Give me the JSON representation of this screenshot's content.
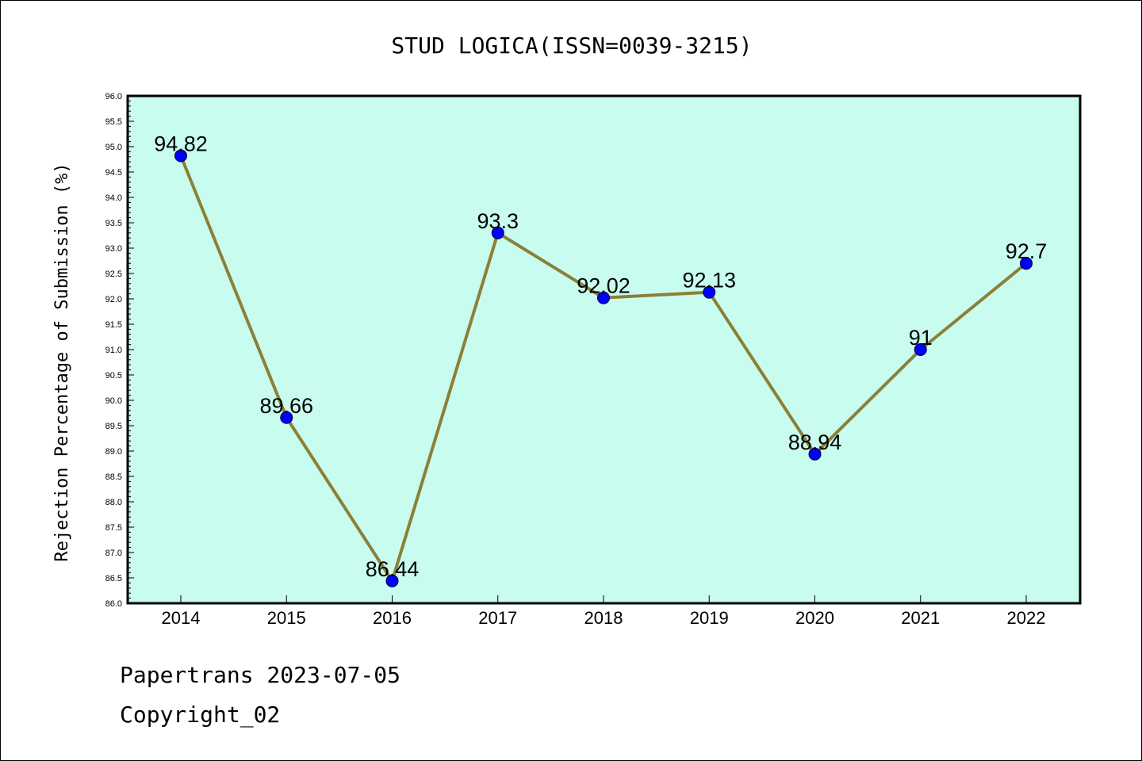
{
  "chart_data": {
    "type": "line",
    "title": "STUD LOGICA(ISSN=0039-3215)",
    "xlabel": "",
    "ylabel": "Rejection Percentage of Submission (%)",
    "categories": [
      "2014",
      "2015",
      "2016",
      "2017",
      "2018",
      "2019",
      "2020",
      "2021",
      "2022"
    ],
    "values": [
      94.82,
      89.66,
      86.44,
      93.3,
      92.02,
      92.13,
      88.94,
      91,
      92.7
    ],
    "data_labels": [
      "94.82",
      "89.66",
      "86.44",
      "93.3",
      "92.02",
      "92.13",
      "88.94",
      "91",
      "92.7"
    ],
    "ylim": [
      86.0,
      96.0
    ],
    "yticks": [
      "86.0",
      "86.5",
      "87.0",
      "87.5",
      "88.0",
      "88.5",
      "89.0",
      "89.5",
      "90.0",
      "90.5",
      "91.0",
      "91.5",
      "92.0",
      "92.5",
      "93.0",
      "93.5",
      "94.0",
      "94.5",
      "95.0",
      "95.5",
      "96.0"
    ],
    "grid": false,
    "legend": "none",
    "colors": {
      "plot_background": "#c8fcee",
      "line": "#8b8038",
      "marker": "#0000ff"
    }
  },
  "footer": {
    "line1": "Papertrans 2023-07-05",
    "line2": "Copyright_02"
  }
}
